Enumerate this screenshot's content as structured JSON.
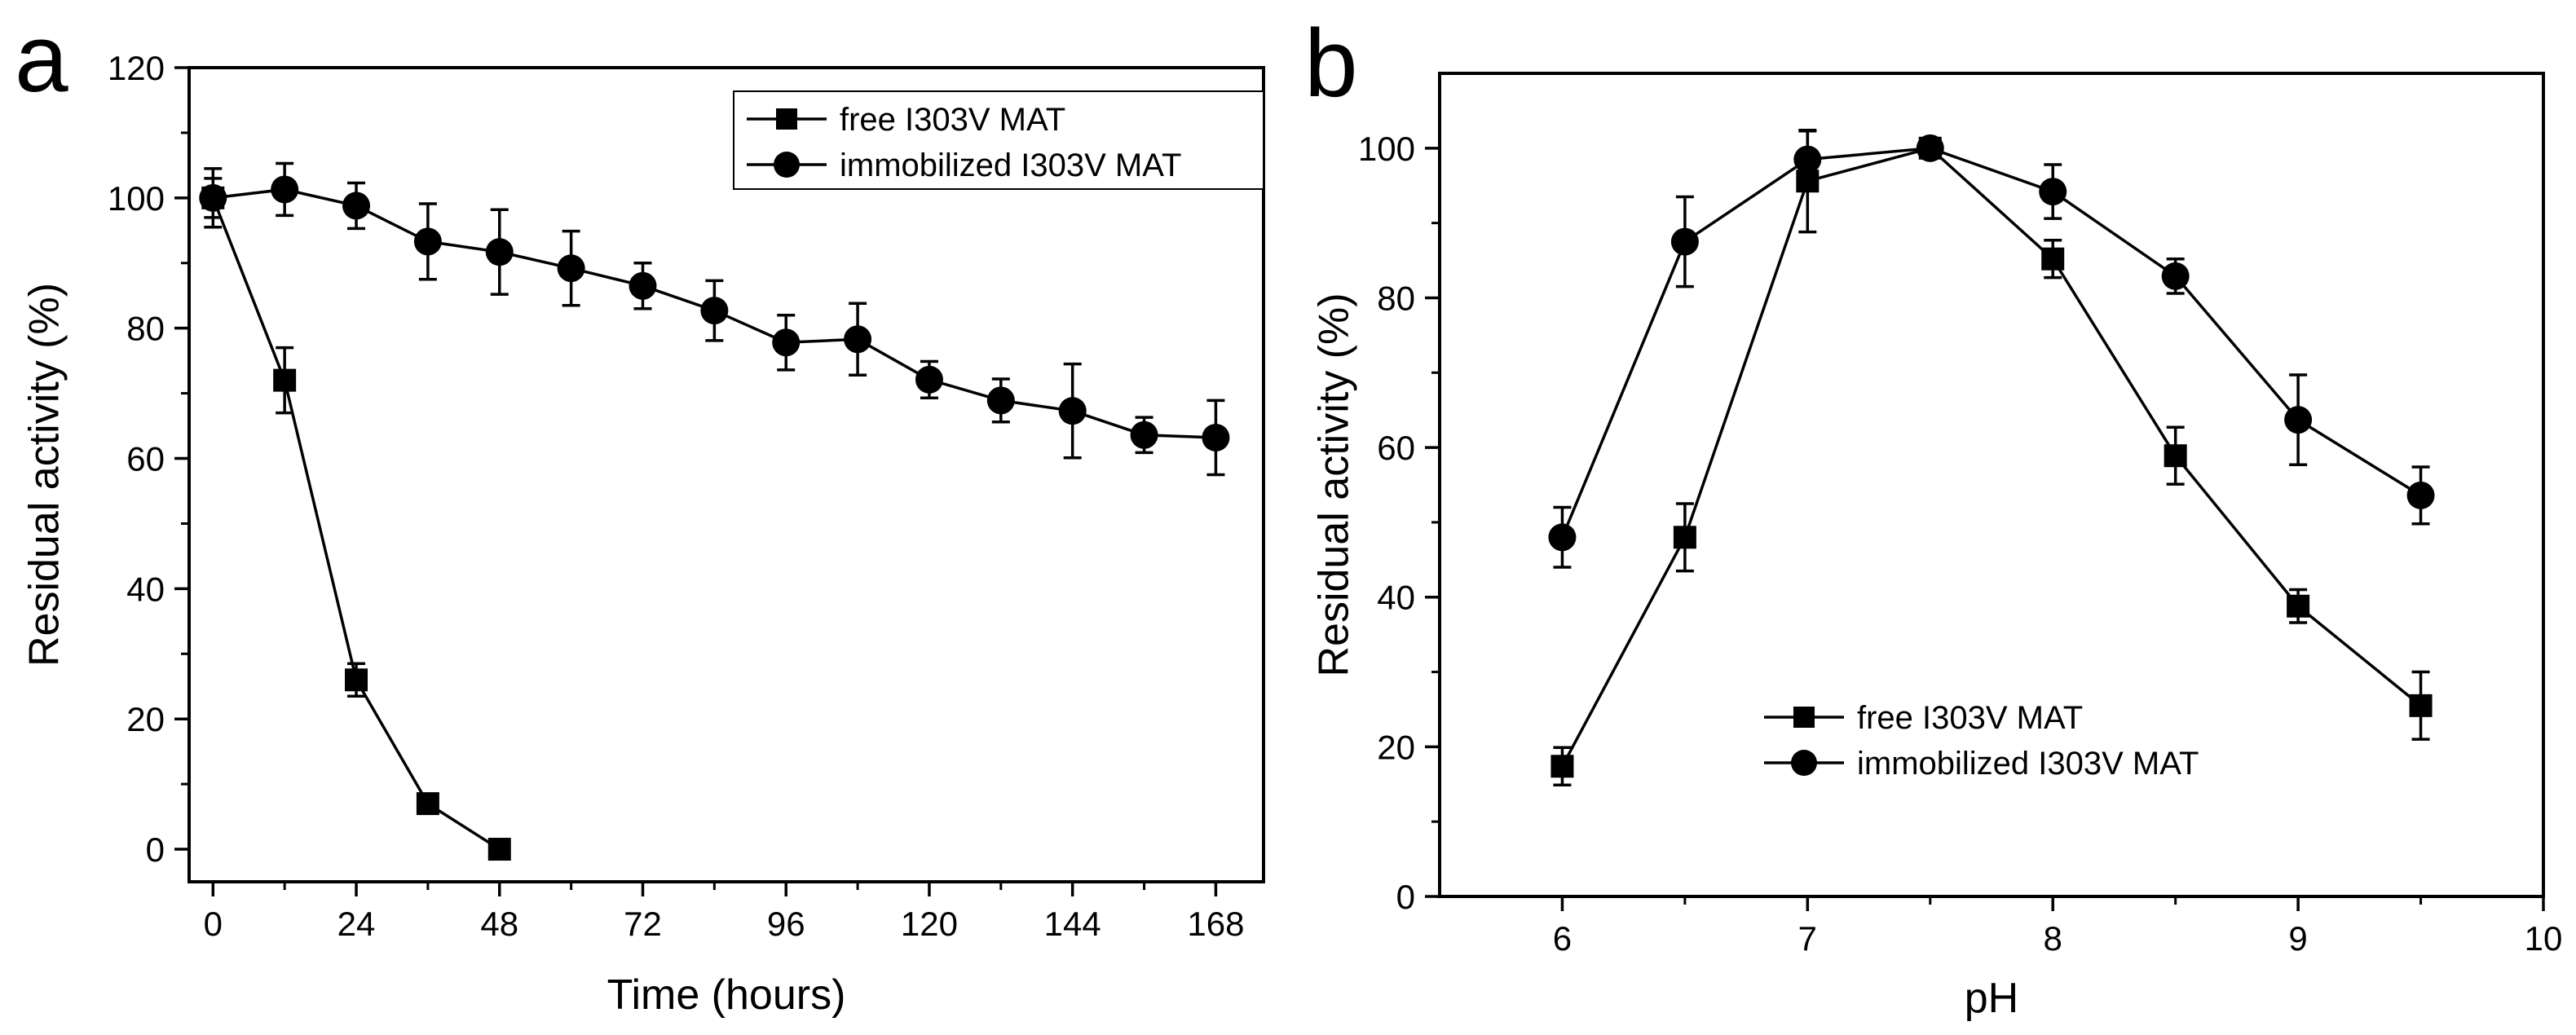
{
  "chart_data": [
    {
      "panel": "a",
      "type": "line",
      "xlabel": "Time (hours)",
      "ylabel": "Residual activity (%)",
      "xlim": [
        -4,
        176
      ],
      "ylim": [
        -5,
        120
      ],
      "xticks": [
        0,
        24,
        48,
        72,
        96,
        120,
        144,
        168
      ],
      "yticks": [
        0,
        20,
        40,
        60,
        80,
        100,
        120
      ],
      "x_tick_labels": [
        "0",
        "24",
        "48",
        "72",
        "96",
        "120",
        "144",
        "168"
      ],
      "y_tick_labels": [
        "0",
        "20",
        "40",
        "60",
        "80",
        "100",
        "120"
      ],
      "legend_position": "top-right",
      "series": [
        {
          "name": "free I303V MAT",
          "marker": "square",
          "x": [
            0,
            12,
            24,
            36,
            48
          ],
          "y": [
            100,
            72,
            26,
            7,
            0
          ],
          "err": [
            3,
            5,
            2.5,
            1,
            0
          ]
        },
        {
          "name": "immobilized I303V MAT",
          "marker": "circle",
          "x": [
            0,
            12,
            24,
            36,
            48,
            60,
            72,
            84,
            96,
            108,
            120,
            132,
            144,
            156,
            168
          ],
          "y": [
            100,
            101.3,
            98.8,
            93.3,
            91.7,
            89.2,
            86.5,
            82.7,
            77.8,
            78.3,
            72.1,
            68.9,
            67.3,
            63.6,
            63.2
          ],
          "err": [
            4.5,
            4,
            3.5,
            5.8,
            6.5,
            5.7,
            3.5,
            4.6,
            4.2,
            5.5,
            2.8,
            3.3,
            7.2,
            2.7,
            5.7
          ]
        }
      ]
    },
    {
      "panel": "b",
      "type": "line",
      "xlabel": "pH",
      "ylabel": "Residual activity (%)",
      "xlim": [
        5.5,
        10
      ],
      "ylim": [
        0,
        110
      ],
      "xticks": [
        6,
        7,
        8,
        9,
        10
      ],
      "yticks": [
        0,
        20,
        40,
        60,
        80,
        100
      ],
      "x_tick_labels": [
        "6",
        "7",
        "8",
        "9",
        "10"
      ],
      "y_tick_labels": [
        "0",
        "20",
        "40",
        "60",
        "80",
        "100"
      ],
      "legend_position": "bottom-center",
      "series": [
        {
          "name": "free I303V MAT",
          "marker": "square",
          "x": [
            6,
            6.5,
            7,
            7.5,
            8,
            8.5,
            9,
            9.5
          ],
          "y": [
            17.4,
            48,
            95.6,
            100,
            85.2,
            58.9,
            38.8,
            25.5
          ],
          "err": [
            2.5,
            4.5,
            6.8,
            0.5,
            2.5,
            3.8,
            2.2,
            4.5
          ]
        },
        {
          "name": "immobilized I303V MAT",
          "marker": "circle",
          "x": [
            6,
            6.5,
            7,
            7.5,
            8,
            8.5,
            9,
            9.5
          ],
          "y": [
            48,
            87.5,
            98.5,
            100,
            94.2,
            82.9,
            63.7,
            53.6
          ],
          "err": [
            4,
            6,
            3.8,
            0.5,
            3.6,
            2.3,
            6,
            3.8
          ]
        }
      ]
    }
  ]
}
